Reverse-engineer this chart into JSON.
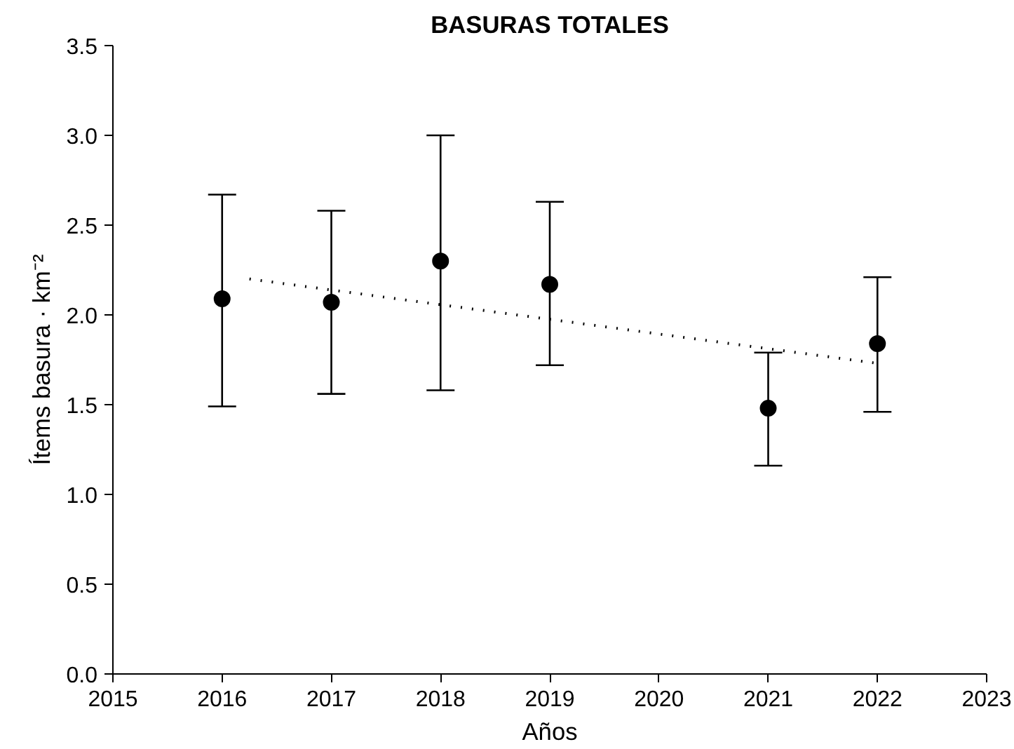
{
  "chart_data": {
    "type": "scatter",
    "title": "BASURAS TOTALES",
    "xlabel": "Años",
    "ylabel": "Ítems basura · km⁻²",
    "xlim": [
      2015,
      2023
    ],
    "xticks": [
      2015,
      2016,
      2017,
      2018,
      2019,
      2020,
      2021,
      2022,
      2023
    ],
    "ylim": [
      0,
      3.5
    ],
    "yticks": [
      {
        "value": 0,
        "label": "0.0"
      },
      {
        "value": 0.5,
        "label": "0.5"
      },
      {
        "value": 1,
        "label": "1.0"
      },
      {
        "value": 1.5,
        "label": "1.5"
      },
      {
        "value": 2,
        "label": "2.0"
      },
      {
        "value": 2.5,
        "label": "2.5"
      },
      {
        "value": 3,
        "label": "3.0"
      },
      {
        "value": 3.5,
        "label": "3.5"
      }
    ],
    "grid": false,
    "marker": "circle",
    "series": [
      {
        "color": "#000000",
        "x": [
          2016,
          2017,
          2018,
          2019,
          2021,
          2022
        ],
        "values": [
          2.09,
          2.07,
          2.3,
          2.17,
          1.48,
          1.84
        ],
        "errors": [
          [
            1.49,
            2.67
          ],
          [
            1.56,
            2.58
          ],
          [
            1.58,
            3.0
          ],
          [
            1.72,
            2.63
          ],
          [
            1.16,
            1.79
          ],
          [
            1.46,
            2.21
          ]
        ]
      },
      {
        "type": "line",
        "color": "#000000",
        "x": [
          2016.25,
          2022
        ],
        "values": [
          2.2,
          1.73
        ],
        "line_style": "dotted",
        "marker": "none"
      }
    ]
  }
}
